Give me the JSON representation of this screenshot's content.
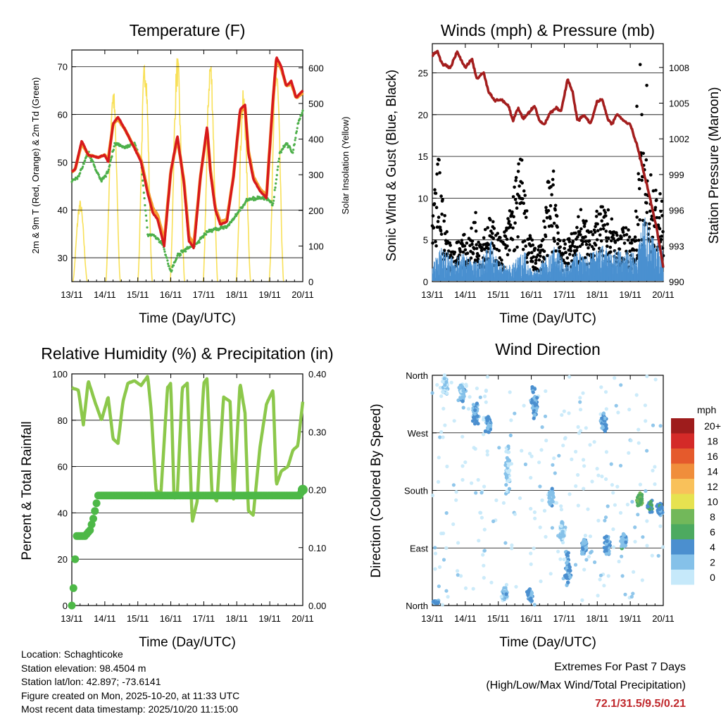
{
  "chart_data": [
    {
      "type": "line",
      "title": "Temperature (F)",
      "xlabel": "Time (Day/UTC)",
      "ylabel": "2m & 9m T (Red, Orange) & 2m Td (Green)",
      "y2label": "Solar Insolation (Yellow)",
      "x_ticks": [
        "13/11",
        "14/11",
        "15/11",
        "16/11",
        "17/11",
        "18/11",
        "19/11",
        "20/11"
      ],
      "ylim": [
        25,
        73.5
      ],
      "yticks": [
        30,
        40,
        50,
        60,
        70
      ],
      "y2lim": [
        0,
        650
      ],
      "y2ticks": [
        0,
        100,
        200,
        300,
        400,
        500,
        600
      ],
      "series": [
        {
          "name": "2m T",
          "color": "#d7191c",
          "x": [
            0,
            0.1,
            0.3,
            0.5,
            0.8,
            1.0,
            1.1,
            1.25,
            1.4,
            1.6,
            1.9,
            2.1,
            2.3,
            2.45,
            2.6,
            2.8,
            3.0,
            3.2,
            3.4,
            3.55,
            3.7,
            3.9,
            4.1,
            4.2,
            4.35,
            4.5,
            4.7,
            4.9,
            5.1,
            5.25,
            5.35,
            5.5,
            5.7,
            5.9,
            6.1,
            6.2,
            6.35,
            6.5,
            6.65,
            6.8,
            7.0
          ],
          "values": [
            48,
            48.5,
            54.5,
            51.5,
            51,
            51.5,
            50,
            58,
            59.5,
            57,
            53,
            50,
            43.5,
            39.5,
            38,
            32.5,
            48,
            55.5,
            45.5,
            33.5,
            32,
            47,
            57.5,
            48,
            40,
            37,
            37.5,
            47,
            61,
            62,
            52,
            46.5,
            44,
            42.5,
            63.5,
            72,
            70,
            66,
            67,
            63.5,
            65
          ]
        },
        {
          "name": "9m T",
          "color": "#f5a030",
          "x": [
            0,
            0.1,
            0.3,
            0.5,
            0.8,
            1.0,
            1.1,
            1.25,
            1.4,
            1.6,
            1.9,
            2.1,
            2.3,
            2.45,
            2.6,
            2.8,
            3.0,
            3.2,
            3.4,
            3.55,
            3.7,
            3.9,
            4.1,
            4.2,
            4.35,
            4.5,
            4.7,
            4.9,
            5.1,
            5.25,
            5.35,
            5.5,
            5.7,
            5.9,
            6.1,
            6.2,
            6.35,
            6.5,
            6.65,
            6.8,
            7.0
          ],
          "values": [
            48,
            48.5,
            54,
            51.5,
            51,
            51.5,
            50.5,
            58,
            59,
            57,
            53,
            50.5,
            44,
            40.5,
            39,
            33.5,
            48,
            55,
            46,
            34.5,
            33,
            47,
            57,
            48.5,
            40.5,
            37.5,
            38,
            47,
            60.5,
            61.5,
            52.5,
            47,
            44.5,
            43,
            63,
            71.5,
            69.5,
            66,
            66.5,
            63.5,
            64.5
          ]
        },
        {
          "name": "2m Td",
          "color": "#4daf4a",
          "x": [
            0,
            0.2,
            0.5,
            0.9,
            1.1,
            1.3,
            1.6,
            1.9,
            2.1,
            2.3,
            2.5,
            2.75,
            3.0,
            3.2,
            3.5,
            3.8,
            4.1,
            4.4,
            4.7,
            5.0,
            5.3,
            5.6,
            5.9,
            6.1,
            6.3,
            6.5,
            6.7,
            6.85,
            7.0
          ],
          "values": [
            46,
            47,
            52,
            46,
            48,
            54,
            53,
            54,
            50,
            35,
            34.5,
            33,
            27,
            30.5,
            32,
            33,
            35.5,
            36,
            36.5,
            39,
            42,
            42.5,
            42.5,
            41,
            52,
            54,
            52,
            58,
            60.5
          ]
        },
        {
          "name": "Solar Insolation",
          "axis": "y2",
          "color": "#f8e058",
          "peaks": [
            [
              0.25,
              230
            ],
            [
              1.25,
              560
            ],
            [
              2.22,
              640
            ],
            [
              3.2,
              640
            ],
            [
              4.2,
              640
            ],
            [
              5.2,
              540
            ],
            [
              6.2,
              620
            ]
          ]
        }
      ]
    },
    {
      "type": "scatter+line",
      "title": "Winds (mph) & Pressure (mb)",
      "xlabel": "Time (Day/UTC)",
      "ylabel": "Sonic Wind & Gust (Blue, Black)",
      "y2label": "Station Pressure (Maroon)",
      "x_ticks": [
        "13/11",
        "14/11",
        "15/11",
        "16/11",
        "17/11",
        "18/11",
        "19/11",
        "20/11"
      ],
      "ylim": [
        0,
        28.5
      ],
      "yticks": [
        0,
        5,
        10,
        15,
        20,
        25
      ],
      "y2lim": [
        990,
        1010
      ],
      "y2ticks": [
        990,
        993,
        996,
        999,
        1002,
        1005,
        1008
      ],
      "series": [
        {
          "name": "Station Pressure",
          "axis": "y2",
          "color": "#a31d1d",
          "x": [
            0,
            0.15,
            0.3,
            0.55,
            0.75,
            1.0,
            1.2,
            1.35,
            1.55,
            1.7,
            1.9,
            2.1,
            2.3,
            2.45,
            2.6,
            2.75,
            2.9,
            3.1,
            3.25,
            3.4,
            3.55,
            3.75,
            3.9,
            4.1,
            4.25,
            4.4,
            4.6,
            4.8,
            5.0,
            5.15,
            5.3,
            5.45,
            5.6,
            5.8,
            6.0,
            6.2,
            6.4,
            6.6,
            6.8,
            7.0
          ],
          "values": [
            1009,
            1009.4,
            1008.3,
            1008,
            1009.3,
            1008,
            1008.7,
            1007,
            1007.6,
            1006,
            1005.2,
            1005.3,
            1004.8,
            1003.5,
            1004.6,
            1003.7,
            1004.1,
            1004.8,
            1003.5,
            1003.2,
            1004.1,
            1004.6,
            1004.3,
            1007,
            1006,
            1003.5,
            1004,
            1003.3,
            1005.2,
            1005.3,
            1003.8,
            1003.2,
            1004.1,
            1003.5,
            1003.2,
            1001.5,
            999.3,
            997,
            994.5,
            991.2
          ]
        },
        {
          "name": "Sonic Wind",
          "color": "#4a90d0",
          "envelope_x": [
            0,
            0.3,
            0.6,
            1.0,
            1.3,
            1.6,
            1.8,
            2.0,
            2.2,
            2.4,
            2.6,
            2.8,
            3.0,
            3.2,
            3.4,
            3.6,
            3.8,
            4.0,
            4.2,
            4.4,
            4.6,
            4.8,
            5.0,
            5.2,
            5.4,
            5.6,
            5.8,
            6.0,
            6.2,
            6.4,
            6.6,
            6.8,
            7.0
          ],
          "envelope_y": [
            2,
            4.5,
            3,
            3.5,
            2.5,
            4,
            5,
            3,
            2,
            2,
            3,
            4,
            1.5,
            1.5,
            3,
            3.5,
            5,
            2,
            2.5,
            4,
            3,
            3.5,
            4,
            4.5,
            3.5,
            4,
            3.5,
            4,
            3,
            8,
            7,
            5,
            4
          ]
        },
        {
          "name": "Gust",
          "color": "#000000",
          "envelope_x": [
            0,
            0.2,
            0.4,
            0.6,
            0.9,
            1.1,
            1.3,
            1.5,
            1.7,
            1.9,
            2.1,
            2.3,
            2.5,
            2.7,
            2.9,
            3.1,
            3.3,
            3.5,
            3.7,
            3.9,
            4.1,
            4.3,
            4.5,
            4.7,
            4.9,
            5.1,
            5.3,
            5.5,
            5.7,
            5.9,
            6.1,
            6.3,
            6.5,
            6.7,
            6.9,
            7.0
          ],
          "envelope_y": [
            8,
            16,
            7,
            4,
            6,
            5,
            9,
            6,
            8,
            7,
            5,
            8,
            13,
            16,
            7,
            4,
            5,
            12,
            14,
            5,
            5,
            7,
            9,
            7,
            8,
            9,
            9,
            7,
            6,
            7,
            5,
            16,
            15,
            12,
            11,
            9
          ],
          "outliers": [
            [
              6.3,
              26
            ],
            [
              6.2,
              21
            ],
            [
              6.5,
              23.5
            ],
            [
              6.35,
              20
            ]
          ]
        }
      ]
    },
    {
      "type": "line",
      "title": "Relative Humidity (%) & Precipitation (in)",
      "xlabel": "Time (Day/UTC)",
      "ylabel": "Percent & Total Rainfall",
      "x_ticks": [
        "13/11",
        "14/11",
        "15/11",
        "16/11",
        "17/11",
        "18/11",
        "19/11",
        "20/11"
      ],
      "ylim": [
        0,
        100
      ],
      "yticks": [
        0,
        20,
        40,
        60,
        80,
        100
      ],
      "y2lim": [
        0,
        0.4
      ],
      "y2ticks": [
        "0.00",
        "0.10",
        "0.20",
        "0.30",
        "0.40"
      ],
      "series": [
        {
          "name": "Relative Humidity",
          "color": "#8cc84b",
          "x": [
            0,
            0.2,
            0.35,
            0.5,
            0.7,
            0.9,
            1.1,
            1.25,
            1.4,
            1.55,
            1.7,
            1.9,
            2.1,
            2.3,
            2.4,
            2.55,
            2.7,
            2.9,
            3.0,
            3.1,
            3.2,
            3.35,
            3.5,
            3.65,
            3.8,
            4.0,
            4.1,
            4.25,
            4.4,
            4.6,
            4.8,
            4.9,
            5.1,
            5.25,
            5.35,
            5.5,
            5.7,
            5.9,
            6.1,
            6.2,
            6.35,
            6.55,
            6.7,
            6.85,
            7.0
          ],
          "values": [
            94,
            93,
            78,
            97,
            88,
            80,
            90,
            72,
            70,
            88,
            96,
            97,
            95,
            99,
            85,
            50,
            48,
            94,
            96,
            46,
            49,
            94,
            96,
            36,
            45,
            96,
            98,
            48,
            45,
            90,
            88,
            46,
            96,
            83,
            41,
            39,
            68,
            87,
            93,
            52,
            58,
            60,
            67,
            69,
            88
          ]
        },
        {
          "name": "Total Precipitation",
          "axis": "y2",
          "color": "#4db847",
          "x": [
            0,
            0.05,
            0.1,
            0.15,
            0.25,
            0.4,
            0.55,
            0.65,
            0.8,
            1.0,
            1.5,
            2.0,
            3.0,
            4.0,
            5.0,
            6.0,
            6.9,
            7.0
          ],
          "values": [
            0,
            0.03,
            0.08,
            0.12,
            0.12,
            0.12,
            0.13,
            0.15,
            0.19,
            0.19,
            0.19,
            0.19,
            0.19,
            0.19,
            0.19,
            0.19,
            0.19,
            0.2
          ]
        }
      ]
    },
    {
      "type": "scatter",
      "title": "Wind Direction",
      "xlabel": "Time (Day/UTC)",
      "ylabel": "Direction (Colored By Speed)",
      "x_ticks": [
        "13/11",
        "14/11",
        "15/11",
        "16/11",
        "17/11",
        "18/11",
        "19/11",
        "20/11"
      ],
      "ylim": [
        0,
        360
      ],
      "ytick_labels": [
        "North",
        "East",
        "South",
        "West",
        "North"
      ],
      "legend_title": "mph",
      "legend_labels": [
        "0",
        "2",
        "4",
        "6",
        "8",
        "10",
        "12",
        "14",
        "16",
        "18",
        "20+"
      ],
      "legend_colors": [
        "#c6e9fa",
        "#85c1e9",
        "#4b8fcf",
        "#4daa60",
        "#72b85a",
        "#e6e250",
        "#f9c15a",
        "#f08e3b",
        "#e55a2c",
        "#d42a28",
        "#9e1c1c"
      ],
      "clusters": [
        {
          "x": 0.1,
          "dir": 5,
          "spread": 4,
          "speed": 3
        },
        {
          "x": 0.4,
          "dir": 345,
          "spread": 20,
          "speed": 1
        },
        {
          "x": 0.9,
          "dir": 330,
          "spread": 25,
          "speed": 2
        },
        {
          "x": 1.3,
          "dir": 300,
          "spread": 25,
          "speed": 3
        },
        {
          "x": 1.7,
          "dir": 285,
          "spread": 20,
          "speed": 3
        },
        {
          "x": 2.2,
          "dir": 20,
          "spread": 15,
          "speed": 2
        },
        {
          "x": 2.3,
          "dir": 220,
          "spread": 60,
          "speed": 1
        },
        {
          "x": 2.95,
          "dir": 15,
          "spread": 15,
          "speed": 3
        },
        {
          "x": 3.1,
          "dir": 320,
          "spread": 35,
          "speed": 3
        },
        {
          "x": 3.6,
          "dir": 170,
          "spread": 20,
          "speed": 2
        },
        {
          "x": 3.95,
          "dir": 115,
          "spread": 20,
          "speed": 1
        },
        {
          "x": 4.1,
          "dir": 60,
          "spread": 40,
          "speed": 3
        },
        {
          "x": 4.6,
          "dir": 95,
          "spread": 20,
          "speed": 3
        },
        {
          "x": 5.2,
          "dir": 285,
          "spread": 20,
          "speed": 3
        },
        {
          "x": 5.3,
          "dir": 95,
          "spread": 20,
          "speed": 3
        },
        {
          "x": 5.8,
          "dir": 100,
          "spread": 15,
          "speed": 3
        },
        {
          "x": 6.3,
          "dir": 165,
          "spread": 15,
          "speed": 6
        },
        {
          "x": 6.6,
          "dir": 155,
          "spread": 12,
          "speed": 5
        },
        {
          "x": 6.9,
          "dir": 150,
          "spread": 12,
          "speed": 4
        }
      ]
    }
  ],
  "info": {
    "location": "Location: Schaghticoke",
    "elevation": "Station elevation: 98.4504 m",
    "latlon": "Station lat/lon: 42.897; -73.6141",
    "created": "Figure created on Mon, 2025-10-20, at 11:33 UTC",
    "recent": "Most recent data timestamp: 2025/10/20 11:15:00"
  },
  "extremes": {
    "title": "Extremes For Past 7 Days",
    "subtitle": "(High/Low/Max Wind/Total Precipitation)",
    "values": "72.1/31.5/9.5/0.21"
  }
}
